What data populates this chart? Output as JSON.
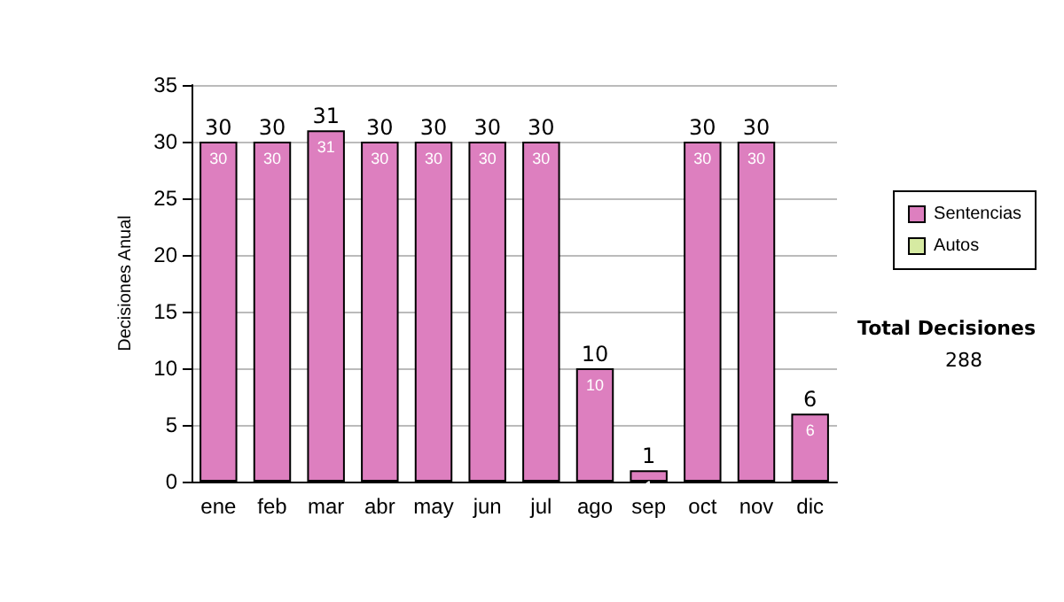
{
  "chart_data": {
    "type": "bar",
    "ylabel": "Decisiones Anual",
    "categories": [
      "ene",
      "feb",
      "mar",
      "abr",
      "may",
      "jun",
      "jul",
      "ago",
      "sep",
      "oct",
      "nov",
      "dic"
    ],
    "series": [
      {
        "name": "Sentencias",
        "color": "#dd7fbf",
        "values": [
          30,
          30,
          31,
          30,
          30,
          30,
          30,
          10,
          1,
          30,
          30,
          6
        ]
      },
      {
        "name": "Autos",
        "color": "#d6eaa2",
        "values": [
          null,
          null,
          null,
          null,
          null,
          null,
          null,
          null,
          null,
          null,
          null,
          null
        ]
      }
    ],
    "stacked": true,
    "data_labels": true,
    "totals": [
      "30",
      "30",
      "31",
      "30",
      "30",
      "30",
      "30",
      "10",
      "1",
      "30",
      "30",
      "6"
    ],
    "ylim": [
      0,
      35
    ],
    "yticks": [
      0,
      5,
      10,
      15,
      20,
      25,
      30,
      35
    ],
    "grid": "y",
    "legend": "right",
    "annotations": [
      "Total Decisiones",
      "288"
    ]
  }
}
